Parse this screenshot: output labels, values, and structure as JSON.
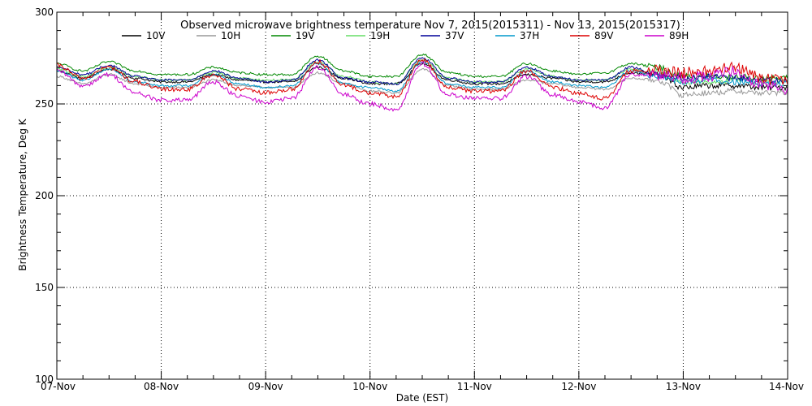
{
  "chart_data": {
    "type": "line",
    "title": "Observed microwave brightness temperature Nov  7, 2015(2015311) - Nov 13, 2015(2015317)",
    "xlabel": "Date (EST)",
    "ylabel": "Brightness Temperature, Deg K",
    "ylim": [
      100,
      300
    ],
    "yticks": [
      {
        "value": 100,
        "label": "100"
      },
      {
        "value": 150,
        "label": "150"
      },
      {
        "value": 200,
        "label": "200"
      },
      {
        "value": 250,
        "label": "250"
      },
      {
        "value": 300,
        "label": "300"
      }
    ],
    "xlim": [
      "2015-11-07",
      "2015-11-14"
    ],
    "xticks": [
      "07-Nov",
      "08-Nov",
      "09-Nov",
      "10-Nov",
      "11-Nov",
      "12-Nov",
      "13-Nov",
      "14-Nov"
    ],
    "grid": true,
    "legend_position": "top",
    "x": [
      "2015-11-07 00:00",
      "2015-11-07 06:00",
      "2015-11-07 12:00",
      "2015-11-07 18:00",
      "2015-11-08 00:00",
      "2015-11-08 06:00",
      "2015-11-08 12:00",
      "2015-11-08 18:00",
      "2015-11-09 00:00",
      "2015-11-09 06:00",
      "2015-11-09 12:00",
      "2015-11-09 18:00",
      "2015-11-10 00:00",
      "2015-11-10 06:00",
      "2015-11-10 12:00",
      "2015-11-10 18:00",
      "2015-11-11 00:00",
      "2015-11-11 06:00",
      "2015-11-11 12:00",
      "2015-11-11 18:00",
      "2015-11-12 00:00",
      "2015-11-12 06:00",
      "2015-11-12 12:00",
      "2015-11-12 18:00",
      "2015-11-13 00:00",
      "2015-11-13 06:00",
      "2015-11-13 12:00",
      "2015-11-13 18:00",
      "2015-11-14 00:00"
    ],
    "series": [
      {
        "name": "10V",
        "color": "#000000",
        "values": [
          268,
          264,
          269,
          264,
          262,
          262,
          266,
          263,
          262,
          262,
          270,
          264,
          261,
          261,
          272,
          263,
          261,
          261,
          266,
          264,
          262,
          262,
          267,
          266,
          259,
          260,
          260,
          259,
          259
        ]
      },
      {
        "name": "10H",
        "color": "#999999",
        "values": [
          265,
          261,
          266,
          261,
          259,
          259,
          263,
          260,
          259,
          259,
          267,
          261,
          257,
          256,
          269,
          260,
          258,
          258,
          263,
          261,
          259,
          258,
          264,
          263,
          255,
          256,
          257,
          256,
          256
        ]
      },
      {
        "name": "19V",
        "color": "#008800",
        "values": [
          272,
          268,
          273,
          268,
          266,
          266,
          270,
          267,
          266,
          266,
          276,
          268,
          265,
          265,
          277,
          267,
          265,
          265,
          272,
          268,
          266,
          267,
          272,
          270,
          265,
          265,
          265,
          264,
          264
        ]
      },
      {
        "name": "19H",
        "color": "#66dd66",
        "values": [
          269,
          265,
          270,
          265,
          263,
          263,
          267,
          264,
          263,
          263,
          273,
          265,
          262,
          261,
          274,
          264,
          262,
          262,
          269,
          265,
          263,
          263,
          269,
          267,
          262,
          262,
          263,
          262,
          262
        ]
      },
      {
        "name": "37V",
        "color": "#000099",
        "values": [
          270,
          266,
          271,
          265,
          263,
          263,
          268,
          264,
          262,
          263,
          274,
          264,
          262,
          261,
          275,
          264,
          262,
          262,
          270,
          265,
          263,
          263,
          270,
          266,
          264,
          265,
          264,
          263,
          263
        ]
      },
      {
        "name": "37H",
        "color": "#0099cc",
        "values": [
          268,
          263,
          269,
          262,
          260,
          260,
          266,
          261,
          259,
          260,
          272,
          261,
          259,
          257,
          273,
          261,
          259,
          259,
          268,
          262,
          260,
          259,
          268,
          265,
          262,
          263,
          262,
          261,
          261
        ]
      },
      {
        "name": "89V",
        "color": "#dd0000",
        "values": [
          271,
          264,
          270,
          262,
          258,
          258,
          266,
          258,
          256,
          258,
          273,
          260,
          256,
          254,
          274,
          259,
          257,
          257,
          268,
          259,
          256,
          253,
          268,
          268,
          267,
          268,
          270,
          264,
          262
        ]
      },
      {
        "name": "89H",
        "color": "#cc00cc",
        "values": [
          268,
          260,
          266,
          256,
          252,
          252,
          262,
          254,
          251,
          253,
          270,
          255,
          250,
          247,
          272,
          255,
          253,
          253,
          265,
          255,
          251,
          248,
          266,
          266,
          264,
          265,
          268,
          261,
          258
        ]
      }
    ]
  }
}
